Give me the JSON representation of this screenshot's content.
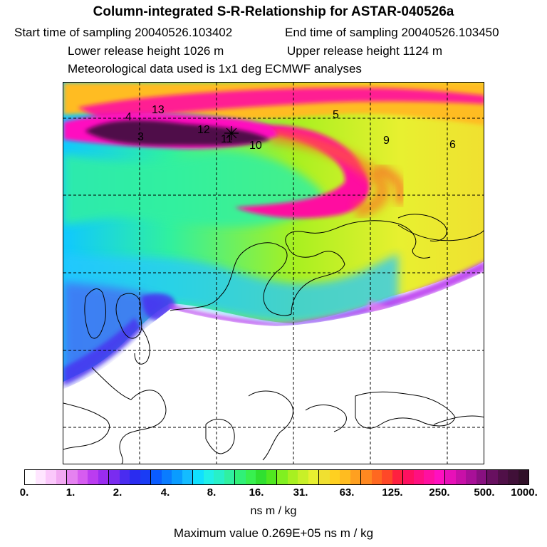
{
  "title": "Column-integrated S-R-Relationship for ASTAR-040526a",
  "header": {
    "start": "Start time of sampling 20040526.103402",
    "end": "End time of sampling 20040526.103450",
    "lower": "Lower release height 1026 m",
    "upper": "Upper release height 1124 m",
    "met": "Meteorological data used is 1x1 deg ECMWF analyses"
  },
  "map": {
    "markers": [
      "4",
      "13",
      "3",
      "12",
      "11",
      "10",
      "5",
      "9",
      "6"
    ]
  },
  "colorbar": {
    "ticks": [
      "0.",
      "1.",
      "2.",
      "4.",
      "8.",
      "16.",
      "31.",
      "63.",
      "125.",
      "250.",
      "500.",
      "1000."
    ],
    "units": "ns m / kg",
    "colors": [
      "#ffffff",
      "#ffe6ff",
      "#fbc8fb",
      "#f2a9f2",
      "#e582f0",
      "#d65cf0",
      "#bb3cf0",
      "#9a2cf0",
      "#7a2cf0",
      "#4a2cf0",
      "#2a2cf0",
      "#1a3cf5",
      "#0a5cff",
      "#0a7cff",
      "#0a9cff",
      "#14bcff",
      "#10e0ff",
      "#20f0e8",
      "#28f0c8",
      "#30f0a0",
      "#30f078",
      "#38f050",
      "#30e030",
      "#50e820",
      "#80f020",
      "#a8f020",
      "#c8f028",
      "#e8f030",
      "#f0e030",
      "#ffd020",
      "#ffbc20",
      "#ffa020",
      "#ff8820",
      "#ff6820",
      "#ff4828",
      "#ff2040",
      "#ff1060",
      "#ff1080",
      "#ff10a0",
      "#ff10c0",
      "#e810b8",
      "#c810a8",
      "#a81098",
      "#881080",
      "#681060",
      "#501048",
      "#401038",
      "#301028"
    ]
  },
  "max_value": "Maximum value  0.269E+05 ns m / kg"
}
